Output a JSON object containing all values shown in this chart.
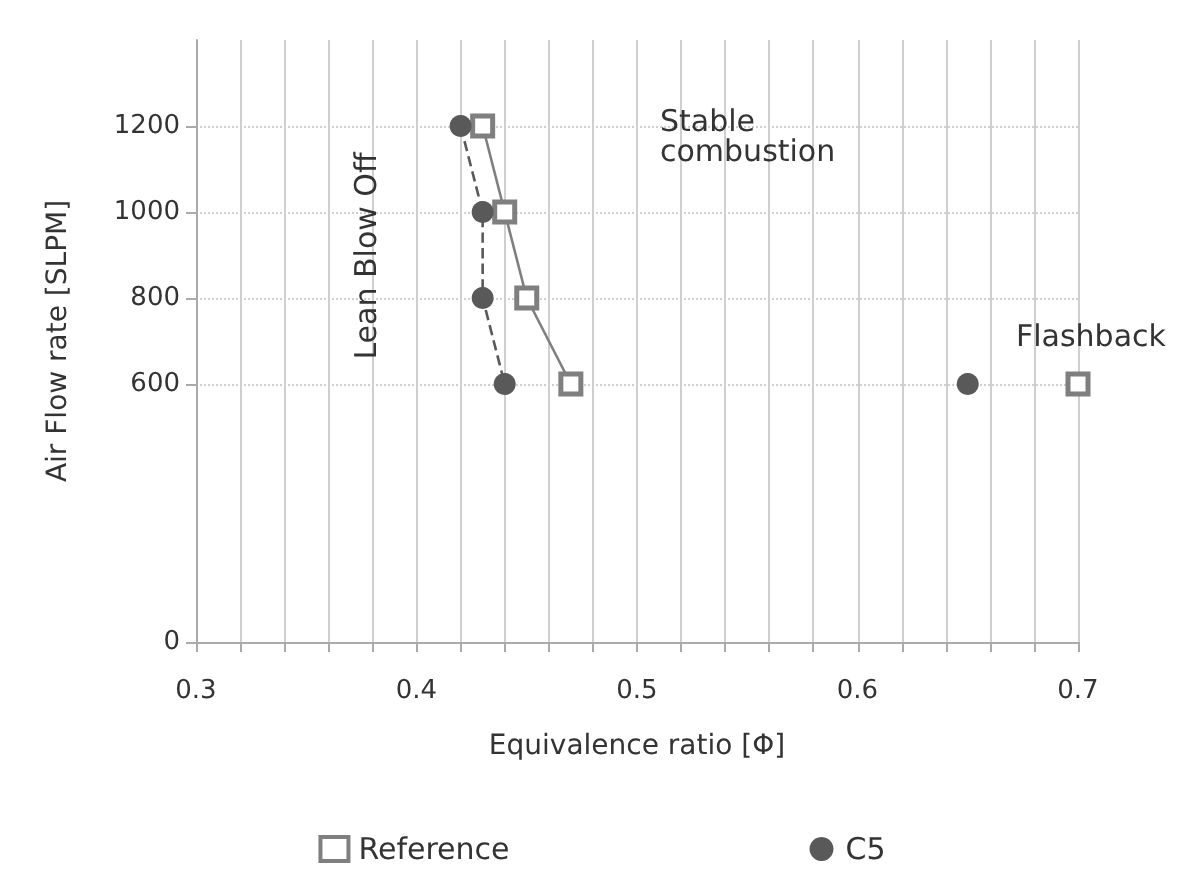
{
  "chart_data": {
    "type": "line",
    "xlabel": "Equivalence ratio [Φ]",
    "ylabel": "Air Flow rate [SLPM]",
    "xlim": [
      0.3,
      0.7
    ],
    "xticks": [
      0.3,
      {
        "value": 0.32,
        "label": null
      },
      {
        "value": 0.34,
        "label": null
      },
      {
        "value": 0.36,
        "label": null
      },
      {
        "value": 0.38,
        "label": null
      },
      0.4,
      {
        "value": 0.42,
        "label": null
      },
      {
        "value": 0.44,
        "label": null
      },
      {
        "value": 0.46,
        "label": null
      },
      {
        "value": 0.48,
        "label": null
      },
      0.5,
      {
        "value": 0.52,
        "label": null
      },
      {
        "value": 0.54,
        "label": null
      },
      {
        "value": 0.56,
        "label": null
      },
      {
        "value": 0.58,
        "label": null
      },
      0.6,
      {
        "value": 0.62,
        "label": null
      },
      {
        "value": 0.64,
        "label": null
      },
      {
        "value": 0.66,
        "label": null
      },
      {
        "value": 0.68,
        "label": null
      },
      0.7
    ],
    "ylim": [
      0,
      1400
    ],
    "yticks": [
      0,
      600,
      800,
      1000,
      1200
    ],
    "grid": true,
    "legend": "bottom",
    "series": [
      {
        "name": "Reference",
        "color": "#7f7f7f",
        "marker": "square",
        "line_style": "solid",
        "x": [
          0.43,
          0.44,
          0.45,
          0.47,
          null,
          0.7
        ],
        "values": [
          1200,
          1000,
          800,
          600,
          null,
          600
        ]
      },
      {
        "name": "C5",
        "color": "#595959",
        "marker": "circle",
        "line_style": "dashed",
        "x": [
          0.42,
          0.43,
          0.43,
          0.44,
          null,
          0.65
        ],
        "values": [
          1200,
          1000,
          800,
          600,
          null,
          600
        ]
      }
    ],
    "annotations": [
      "Lean Blow Off",
      "Stable\ncombustion",
      "Flashback"
    ]
  }
}
